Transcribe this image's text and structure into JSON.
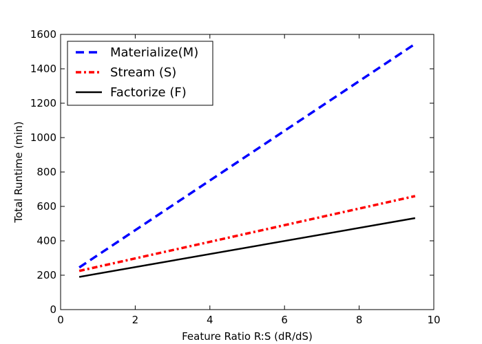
{
  "chart_data": {
    "type": "line",
    "title": "",
    "xlabel": "Feature Ratio R:S (dR/dS)",
    "ylabel": "Total Runtime (min)",
    "xlim": [
      0,
      10
    ],
    "ylim": [
      0,
      1600
    ],
    "xticks": [
      "0",
      "2",
      "4",
      "6",
      "8",
      "10"
    ],
    "yticks": [
      "0",
      "200",
      "400",
      "600",
      "800",
      "1000",
      "1200",
      "1400",
      "1600"
    ],
    "grid": false,
    "legend_position": "top-left",
    "series": [
      {
        "name": "Materialize(M)",
        "color": "#0000ff",
        "style": "dashed",
        "x": [
          0.5,
          9.5
        ],
        "y": [
          245,
          1545
        ]
      },
      {
        "name": "Stream (S)",
        "color": "#ff0000",
        "style": "dash-dot",
        "x": [
          0.5,
          9.5
        ],
        "y": [
          225,
          660
        ]
      },
      {
        "name": "Factorize (F)",
        "color": "#000000",
        "style": "solid",
        "x": [
          0.5,
          9.5
        ],
        "y": [
          190,
          532
        ]
      }
    ]
  }
}
